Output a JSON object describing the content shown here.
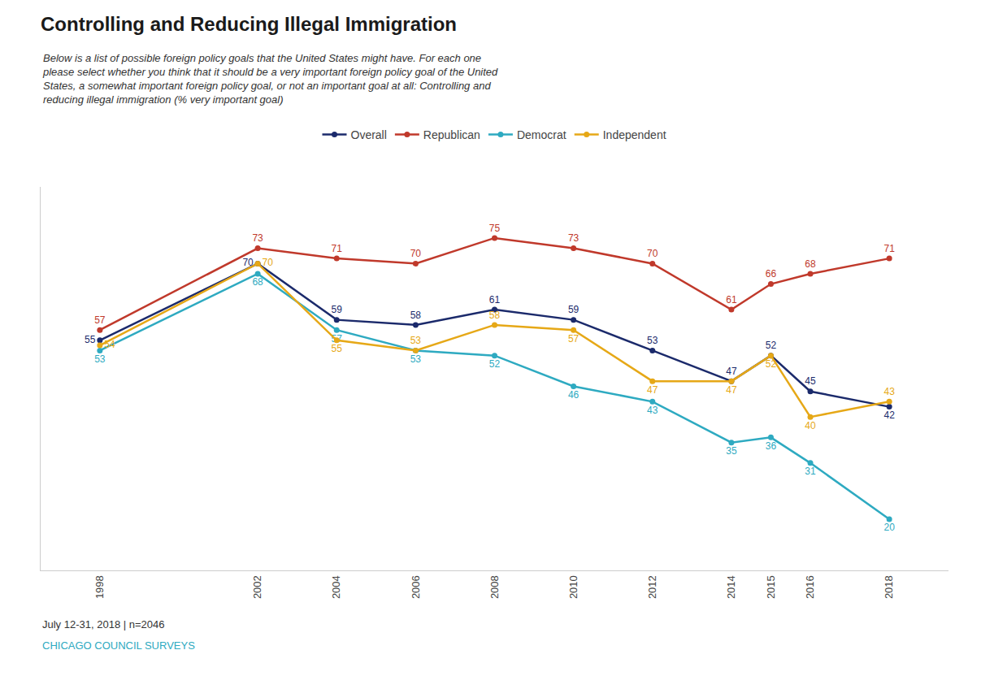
{
  "chart_data": {
    "type": "line",
    "title": "Controlling and Reducing Illegal Immigration",
    "subtitle": "Below is a list of possible foreign policy goals that the United States might have. For each one\nplease select whether you think that it should be a very important foreign policy goal of the United\nStates, a somewhat important foreign policy goal, or not an important goal at all: Controlling and\nreducing illegal immigration (% very important goal)",
    "annotations": [
      {
        "text": "July 12-31, 2018 | n=2046",
        "color": "#333333"
      },
      {
        "text": "CHICAGO COUNCIL SURVEYS",
        "color": "#2eaac1"
      }
    ],
    "x": [
      1998,
      2002,
      2004,
      2006,
      2008,
      2010,
      2012,
      2014,
      2015,
      2016,
      2018
    ],
    "series": [
      {
        "name": "Overall",
        "color": "#1b2a6b",
        "values": [
          55,
          70,
          59,
          58,
          61,
          59,
          53,
          47,
          52,
          45,
          42
        ]
      },
      {
        "name": "Republican",
        "color": "#c0392b",
        "values": [
          57,
          73,
          71,
          70,
          75,
          73,
          70,
          61,
          66,
          68,
          71
        ]
      },
      {
        "name": "Democrat",
        "color": "#2eaac1",
        "values": [
          53,
          68,
          57,
          53,
          52,
          46,
          43,
          35,
          36,
          31,
          20
        ]
      },
      {
        "name": "Independent",
        "color": "#e6a817",
        "values": [
          54,
          70,
          55,
          53,
          58,
          57,
          47,
          47,
          52,
          40,
          43
        ]
      }
    ],
    "xlim": [
      1996.5,
      2019.5
    ],
    "xticks": [
      1998,
      2002,
      2004,
      2006,
      2008,
      2010,
      2012,
      2014,
      2015,
      2016,
      2018
    ],
    "ylim": [
      10,
      85
    ],
    "tick_labels": "x",
    "grid": false,
    "legend": "top",
    "data_labels": true,
    "marker": "circle"
  }
}
